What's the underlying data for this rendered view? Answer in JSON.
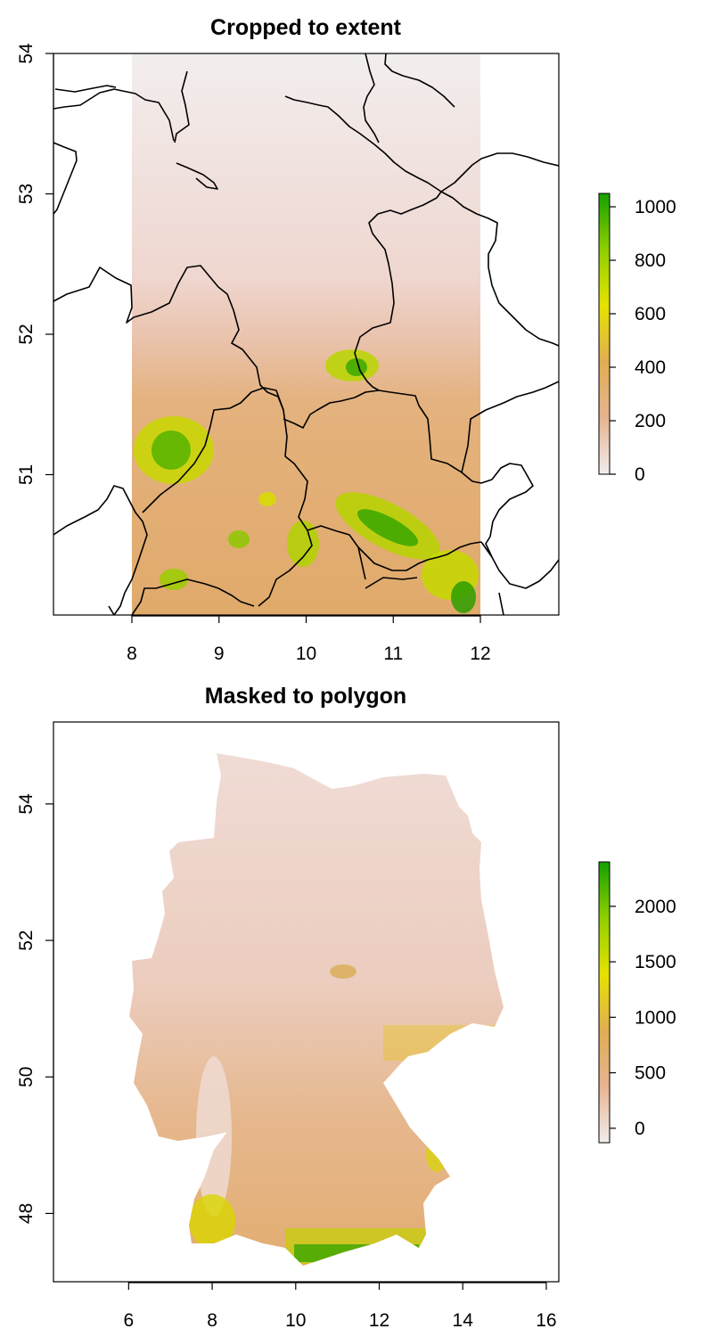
{
  "maps": [
    {
      "title": "Cropped to extent",
      "x_ticks": [
        "8",
        "9",
        "10",
        "11",
        "12"
      ],
      "y_ticks": [
        "51",
        "52",
        "53",
        "54"
      ],
      "xlim": [
        7.1,
        12.9
      ],
      "ylim": [
        50.0,
        54.0
      ],
      "raster_extent": {
        "lon": [
          8.0,
          12.0
        ],
        "lat": [
          50.0,
          54.0
        ]
      },
      "legend": {
        "ticks": [
          "0",
          "200",
          "400",
          "600",
          "800",
          "1000"
        ],
        "range": [
          0,
          1050
        ],
        "colors": [
          "#f1eded",
          "#e7b390",
          "#e0ad53",
          "#e6e200",
          "#8fcf00",
          "#16a000"
        ]
      },
      "show_borders": true
    },
    {
      "title": "Masked to polygon",
      "x_ticks": [
        "6",
        "8",
        "10",
        "12",
        "14",
        "16"
      ],
      "y_ticks": [
        "48",
        "50",
        "52",
        "54"
      ],
      "xlim": [
        4.2,
        16.3
      ],
      "ylim": [
        47.0,
        55.2
      ],
      "legend": {
        "ticks": [
          "0",
          "500",
          "1000",
          "1500",
          "2000"
        ],
        "range": [
          -130,
          2400
        ],
        "colors": [
          "#f1eded",
          "#e7b390",
          "#e0ad53",
          "#e6e200",
          "#8fcf00",
          "#16a000"
        ]
      },
      "show_borders": false
    }
  ]
}
